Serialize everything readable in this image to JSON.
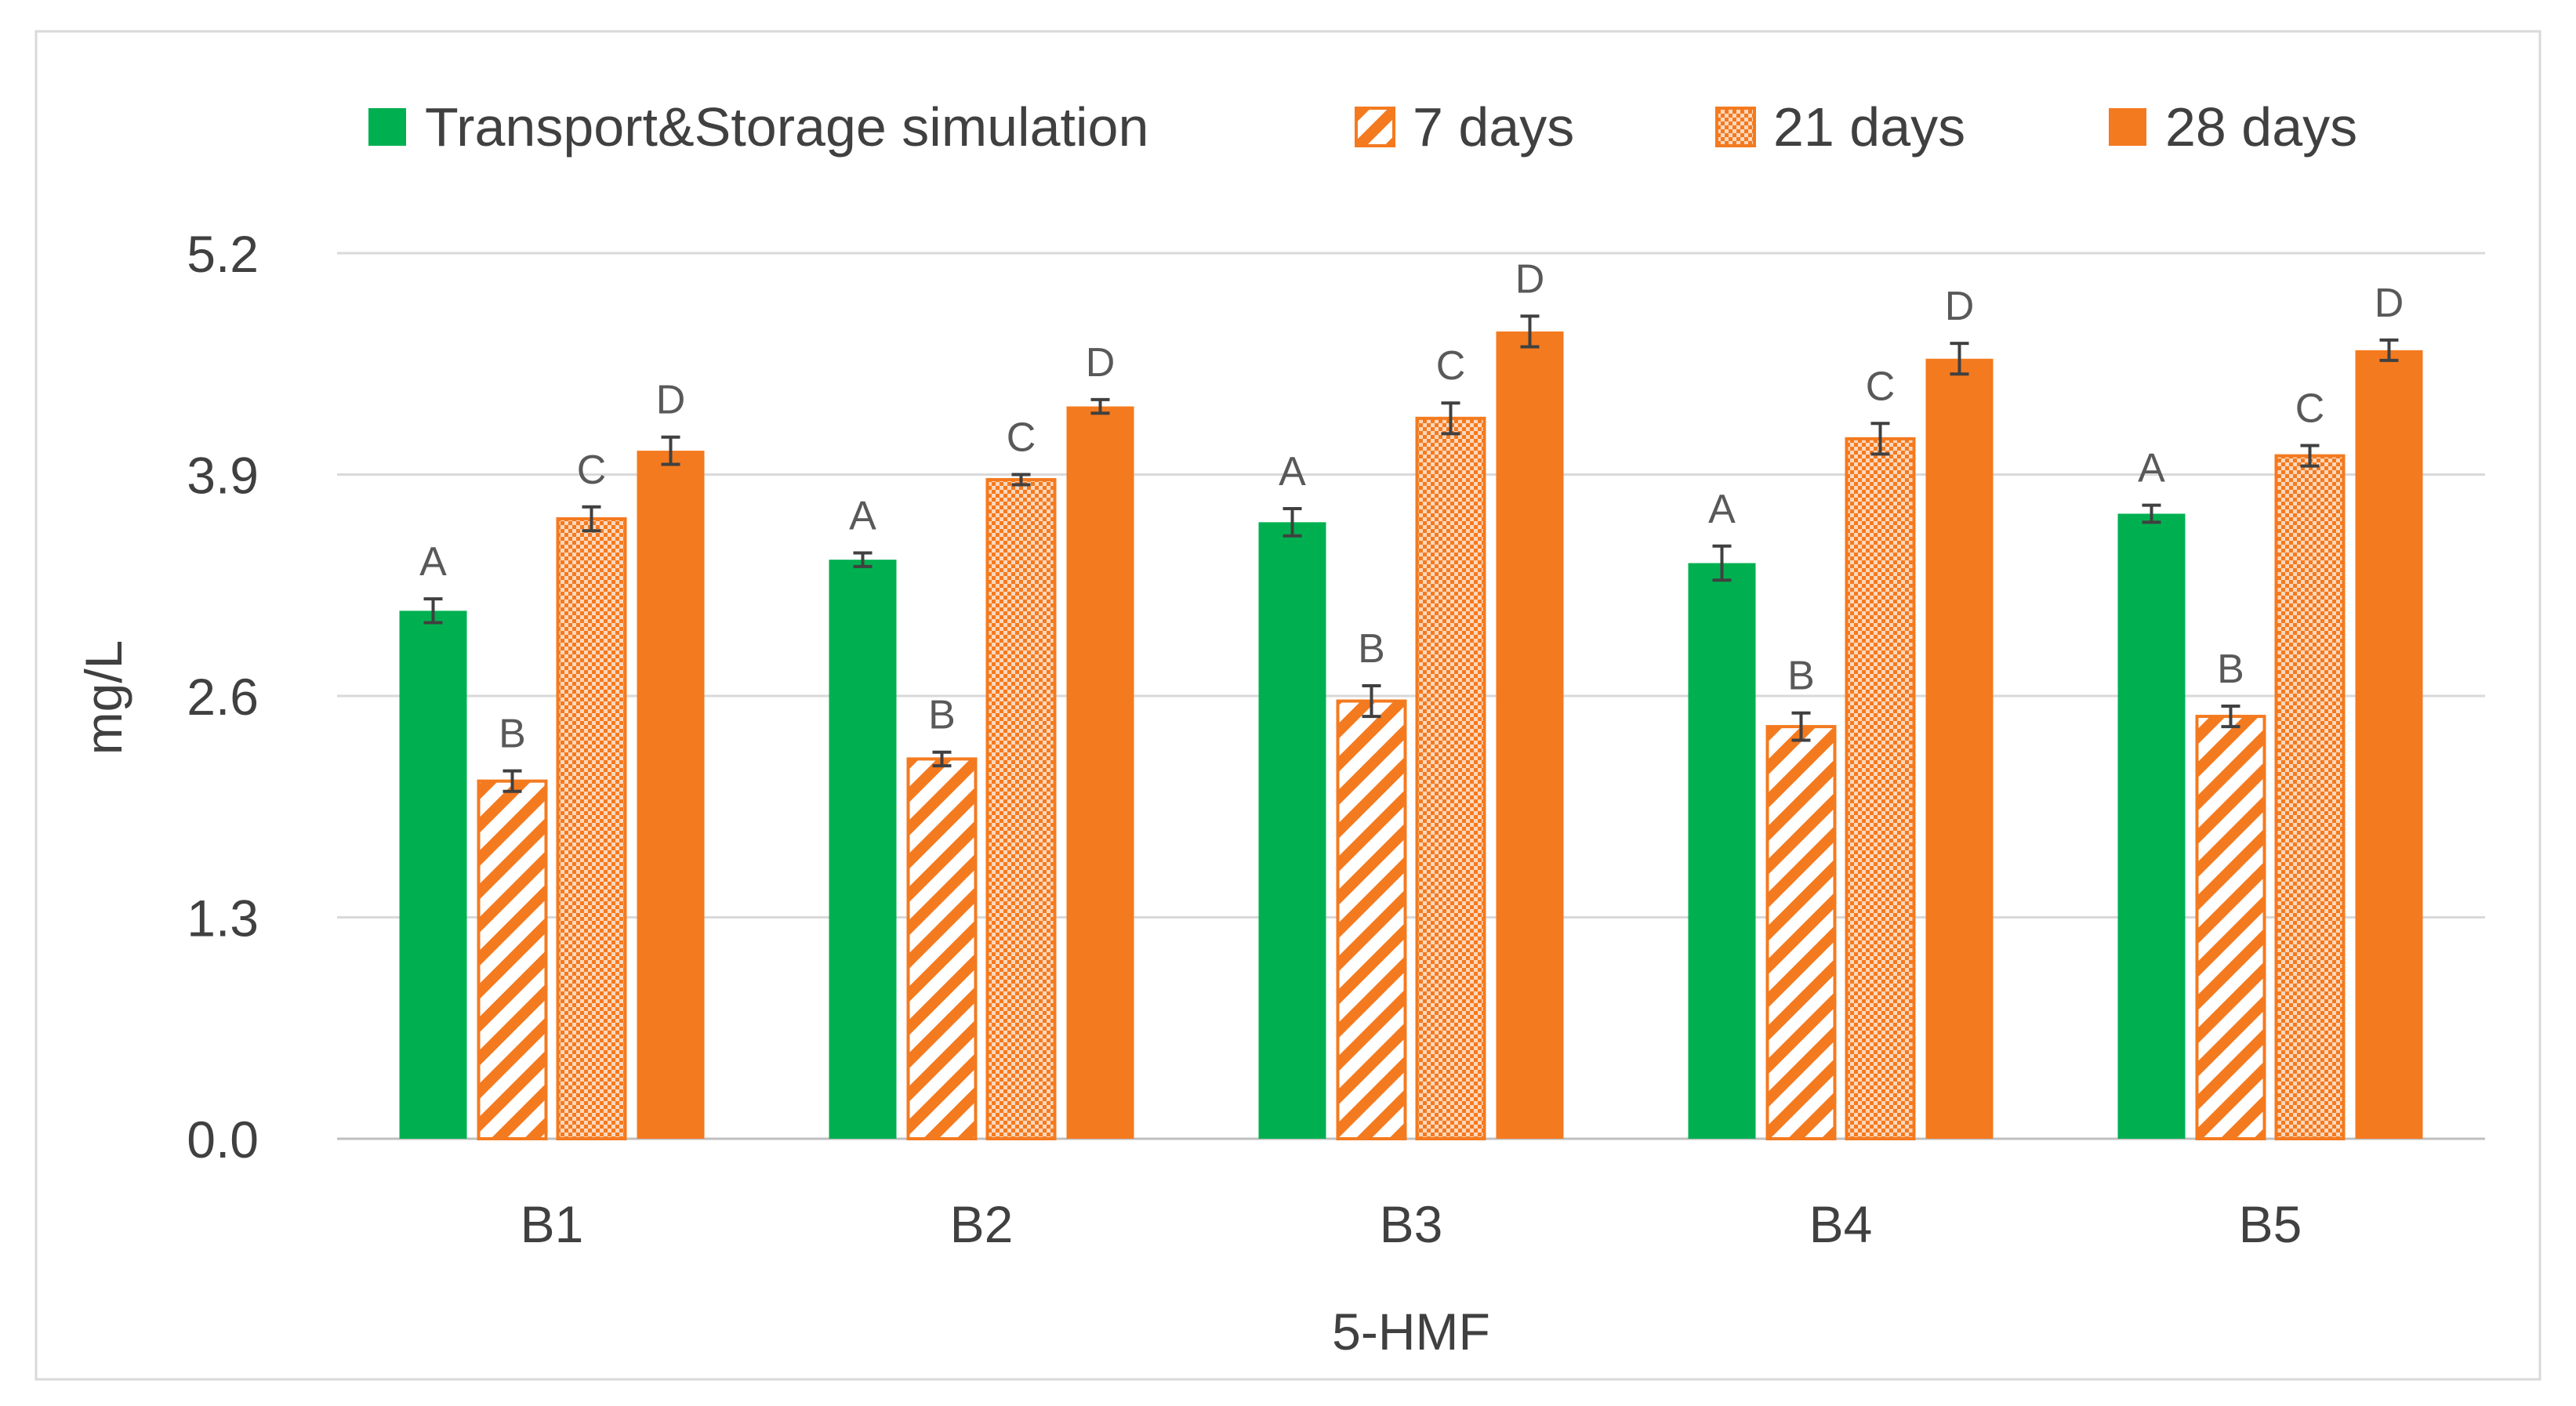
{
  "chart_data": {
    "type": "bar",
    "title": "",
    "xlabel": "5-HMF",
    "ylabel": "mg/L",
    "ylim": [
      0,
      5.2
    ],
    "yticks": [
      "0.0",
      "1.3",
      "2.6",
      "3.9",
      "5.2"
    ],
    "grid": true,
    "legend_position": "top",
    "categories": [
      "B1",
      "B2",
      "B3",
      "B4",
      "B5"
    ],
    "series": [
      {
        "name": "Transport&Storage simulation",
        "pattern": "solid",
        "color": "#00b050",
        "values": [
          3.1,
          3.4,
          3.62,
          3.38,
          3.67
        ],
        "errors": [
          0.07,
          0.04,
          0.08,
          0.1,
          0.05
        ],
        "letters": [
          "A",
          "A",
          "A",
          "A",
          "A"
        ]
      },
      {
        "name": "7 days",
        "pattern": "diagonal-stripes",
        "color": "#f47a1f",
        "values": [
          2.1,
          2.23,
          2.57,
          2.42,
          2.48
        ],
        "errors": [
          0.06,
          0.04,
          0.09,
          0.08,
          0.06
        ],
        "letters": [
          "B",
          "B",
          "B",
          "B",
          "B"
        ]
      },
      {
        "name": "21 days",
        "pattern": "dotted",
        "color": "#f47a1f",
        "values": [
          3.64,
          3.87,
          4.23,
          4.11,
          4.01
        ],
        "errors": [
          0.07,
          0.03,
          0.09,
          0.09,
          0.06
        ],
        "letters": [
          "C",
          "C",
          "C",
          "C",
          "C"
        ]
      },
      {
        "name": "28 days",
        "pattern": "solid",
        "color": "#f47a1f",
        "values": [
          4.04,
          4.3,
          4.74,
          4.58,
          4.63
        ],
        "errors": [
          0.08,
          0.04,
          0.09,
          0.09,
          0.06
        ],
        "letters": [
          "D",
          "D",
          "D",
          "D",
          "D"
        ]
      }
    ]
  }
}
